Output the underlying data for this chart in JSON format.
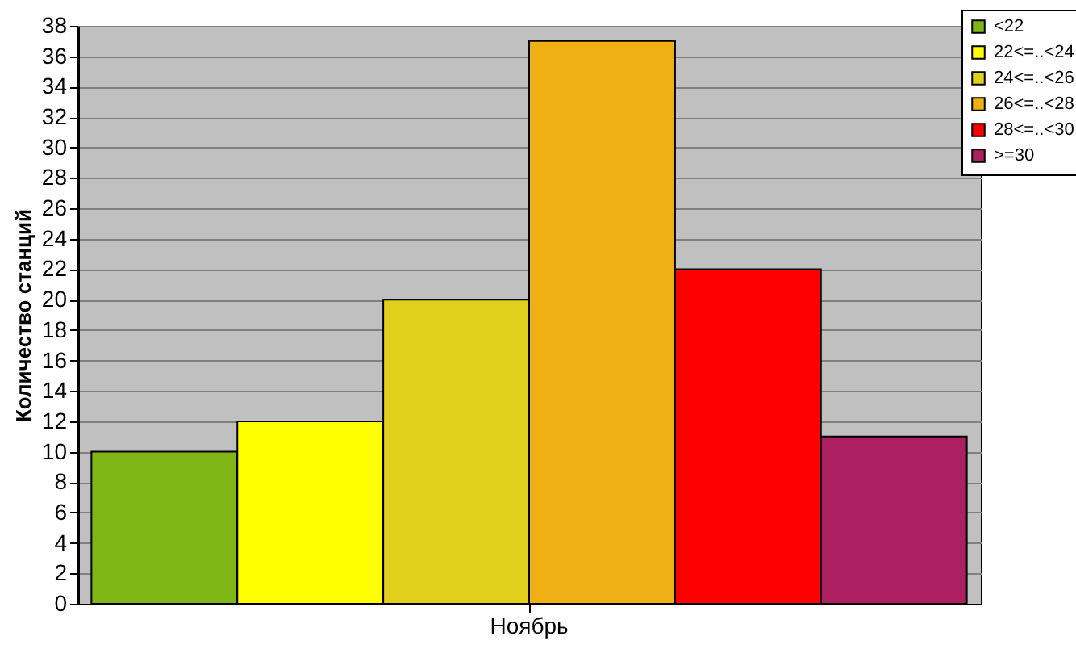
{
  "chart_data": {
    "type": "bar",
    "categories": [
      "Ноябрь"
    ],
    "ylabel": "Количество станций",
    "series": [
      {
        "name": "<22",
        "color": "#7fb717",
        "values": [
          10
        ]
      },
      {
        "name": "22<=..<24",
        "color": "#ffff00",
        "values": [
          12
        ]
      },
      {
        "name": "24<=..<26",
        "color": "#e0d01b",
        "values": [
          20
        ]
      },
      {
        "name": "26<=..<28",
        "color": "#efb015",
        "values": [
          37
        ]
      },
      {
        "name": "28<=..<30",
        "color": "#ff0000",
        "values": [
          22
        ]
      },
      {
        "name": ">=30",
        "color": "#ad2162",
        "values": [
          11
        ]
      }
    ],
    "ylim": [
      0,
      38
    ],
    "yticks": [
      0,
      2,
      4,
      6,
      8,
      10,
      12,
      14,
      16,
      18,
      20,
      22,
      24,
      26,
      28,
      30,
      32,
      34,
      36,
      38
    ],
    "grid": "y",
    "legend": "top right"
  }
}
